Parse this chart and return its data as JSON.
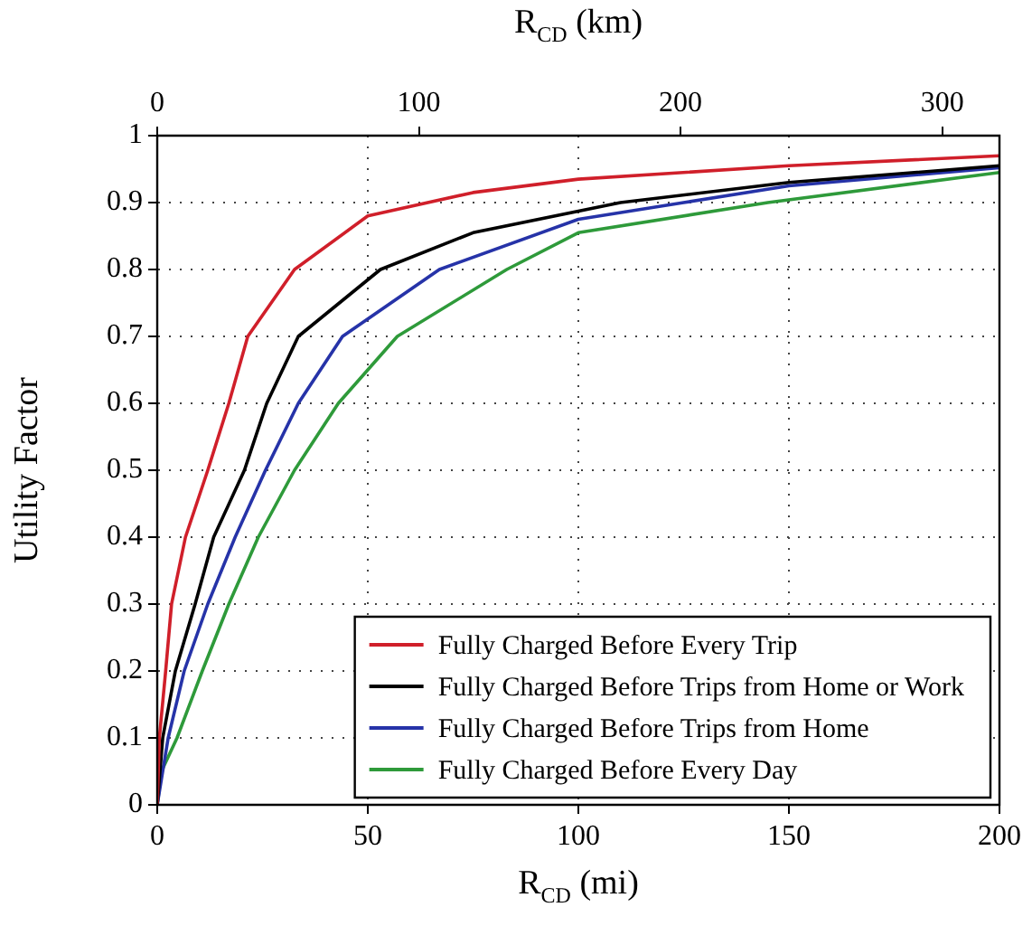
{
  "chart_data": {
    "type": "line",
    "xlabel": "R$_{CD}$ (mi)",
    "x2label": "R$_{CD}$ (km)",
    "ylabel": "Utility Factor",
    "xlim": [
      0,
      200
    ],
    "xticks": [
      0,
      50,
      100,
      150,
      200
    ],
    "x2lim": [
      0,
      321.87
    ],
    "x2ticks": [
      0,
      100,
      200,
      300
    ],
    "ylim": [
      0,
      1
    ],
    "yticks": [
      0,
      0.1,
      0.2,
      0.3,
      0.4,
      0.5,
      0.6,
      0.7,
      0.8,
      0.9,
      1
    ],
    "grid": true,
    "legend": "bottom right",
    "series": [
      {
        "name": "Fully Charged Before Every Trip",
        "color": "#d01f2a",
        "x": [
          0,
          0.5,
          2,
          3.4,
          6.7,
          12,
          17,
          21.5,
          32.6,
          50,
          75,
          100,
          150,
          200
        ],
        "values": [
          0,
          0.1,
          0.2,
          0.3,
          0.4,
          0.5,
          0.6,
          0.7,
          0.8,
          0.88,
          0.915,
          0.935,
          0.955,
          0.97
        ]
      },
      {
        "name": "Fully Charged Before Trips from Home or Work",
        "color": "#000000",
        "x": [
          0,
          1.3,
          4.3,
          9,
          13.4,
          20.7,
          26,
          33.5,
          53,
          75,
          110,
          150,
          200
        ],
        "values": [
          0,
          0.1,
          0.2,
          0.3,
          0.4,
          0.5,
          0.6,
          0.7,
          0.8,
          0.855,
          0.9,
          0.93,
          0.955
        ]
      },
      {
        "name": "Fully Charged Before Trips from Home",
        "color": "#2633a8",
        "x": [
          0,
          2.6,
          6.4,
          12,
          18.5,
          25.7,
          33.5,
          44,
          67,
          100,
          125,
          150,
          200
        ],
        "values": [
          0,
          0.1,
          0.2,
          0.3,
          0.4,
          0.5,
          0.6,
          0.7,
          0.8,
          0.875,
          0.9,
          0.925,
          0.952
        ]
      },
      {
        "name": "Fully Charged Before Every Day",
        "color": "#2e9a3a",
        "x": [
          0,
          1,
          4.7,
          10.7,
          17,
          24,
          32.6,
          43,
          57,
          83,
          100,
          145,
          200
        ],
        "values": [
          0,
          0.05,
          0.1,
          0.2,
          0.3,
          0.4,
          0.5,
          0.6,
          0.7,
          0.8,
          0.855,
          0.9,
          0.945
        ]
      }
    ]
  }
}
